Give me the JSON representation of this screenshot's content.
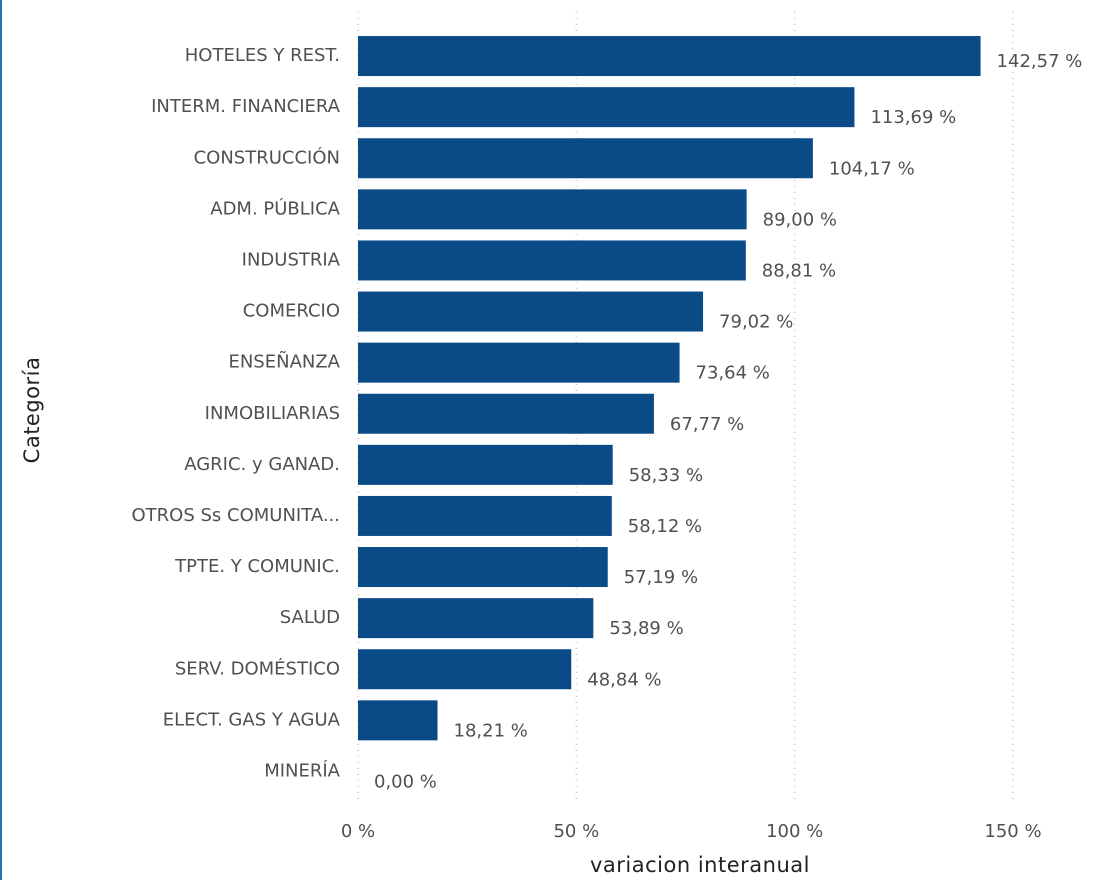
{
  "chart_data": {
    "type": "bar",
    "orientation": "horizontal",
    "x_label": "variacion interanual",
    "y_label": "Categoría",
    "categories": [
      "HOTELES Y REST.",
      "INTERM. FINANCIERA",
      "CONSTRUCCIÓN",
      "ADM. PÚBLICA",
      "INDUSTRIA",
      "COMERCIO",
      "ENSEÑANZA",
      "INMOBILIARIAS",
      "AGRIC. y GANAD.",
      "OTROS Ss COMUNITA...",
      "TPTE. Y COMUNIC.",
      "SALUD",
      "SERV. DOMÉSTICO",
      "ELECT. GAS Y AGUA",
      "MINERÍA"
    ],
    "values": [
      142.57,
      113.69,
      104.17,
      89.0,
      88.81,
      79.02,
      73.64,
      67.77,
      58.33,
      58.12,
      57.19,
      53.89,
      48.84,
      18.21,
      0.0
    ],
    "value_labels": [
      "142,57 %",
      "113,69 %",
      "104,17 %",
      "89,00 %",
      "88,81 %",
      "79,02 %",
      "73,64 %",
      "67,77 %",
      "58,33 %",
      "58,12 %",
      "57,19 %",
      "53,89 %",
      "48,84 %",
      "18,21 %",
      "0,00 %"
    ],
    "color": "#0a4a87",
    "xlim": [
      0,
      150
    ],
    "xticks": [
      {
        "value": 0,
        "label": "0 %"
      },
      {
        "value": 50,
        "label": "50 %"
      },
      {
        "value": 100,
        "label": "100 %"
      },
      {
        "value": 150,
        "label": "150 %"
      }
    ],
    "grid": true
  }
}
